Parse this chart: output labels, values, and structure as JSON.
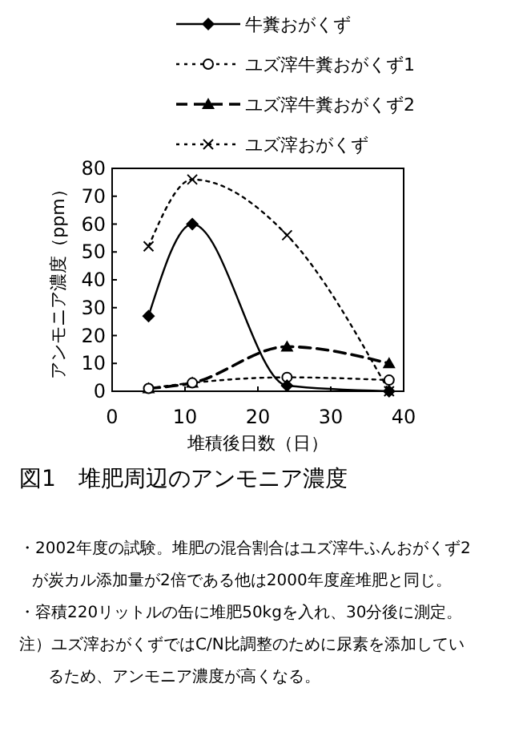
{
  "chart_data": {
    "type": "line",
    "xlabel": "堆積後日数（日）",
    "ylabel": "アンモニア濃度（ppm）",
    "title": "図1　堆肥周辺のアンモニア濃度",
    "x": [
      5,
      11,
      24,
      38
    ],
    "series": [
      {
        "name": "牛糞おがくず",
        "color": "#000000",
        "values": [
          27,
          60,
          2,
          0
        ],
        "marker": "diamond",
        "line_style": "solid"
      },
      {
        "name": "ユズ滓牛糞おがくず1",
        "color": "#000000",
        "values": [
          1,
          3,
          5,
          4
        ],
        "marker": "circle",
        "line_style": "dotted"
      },
      {
        "name": "ユズ滓牛糞おがくず2",
        "color": "#000000",
        "values": [
          1,
          3,
          16,
          10
        ],
        "marker": "triangle",
        "line_style": "dashed"
      },
      {
        "name": "ユズ滓おがくず",
        "color": "#000000",
        "values": [
          52,
          76,
          56,
          0
        ],
        "marker": "cross",
        "line_style": "dotted"
      }
    ],
    "xlim": [
      0,
      40
    ],
    "xticks": [
      0,
      10,
      20,
      30,
      40
    ],
    "ylim": [
      0,
      80
    ],
    "yticks": [
      0,
      10,
      20,
      30,
      40,
      50,
      60,
      70,
      80
    ],
    "legend": "top",
    "grid": false,
    "annotations": [
      "・2002年度の試験。堆肥の混合割合はユズ滓牛ふんおがくず2",
      "が炭カル添加量が2倍である他は2000年度産堆肥と同じ。",
      "・容積220リットルの缶に堆肥50kgを入れ、30分後に測定。",
      "注）ユズ滓おがくずではC/N比調整のために尿素を添加してい",
      "るため、アンモニア濃度が高くなる。"
    ]
  }
}
